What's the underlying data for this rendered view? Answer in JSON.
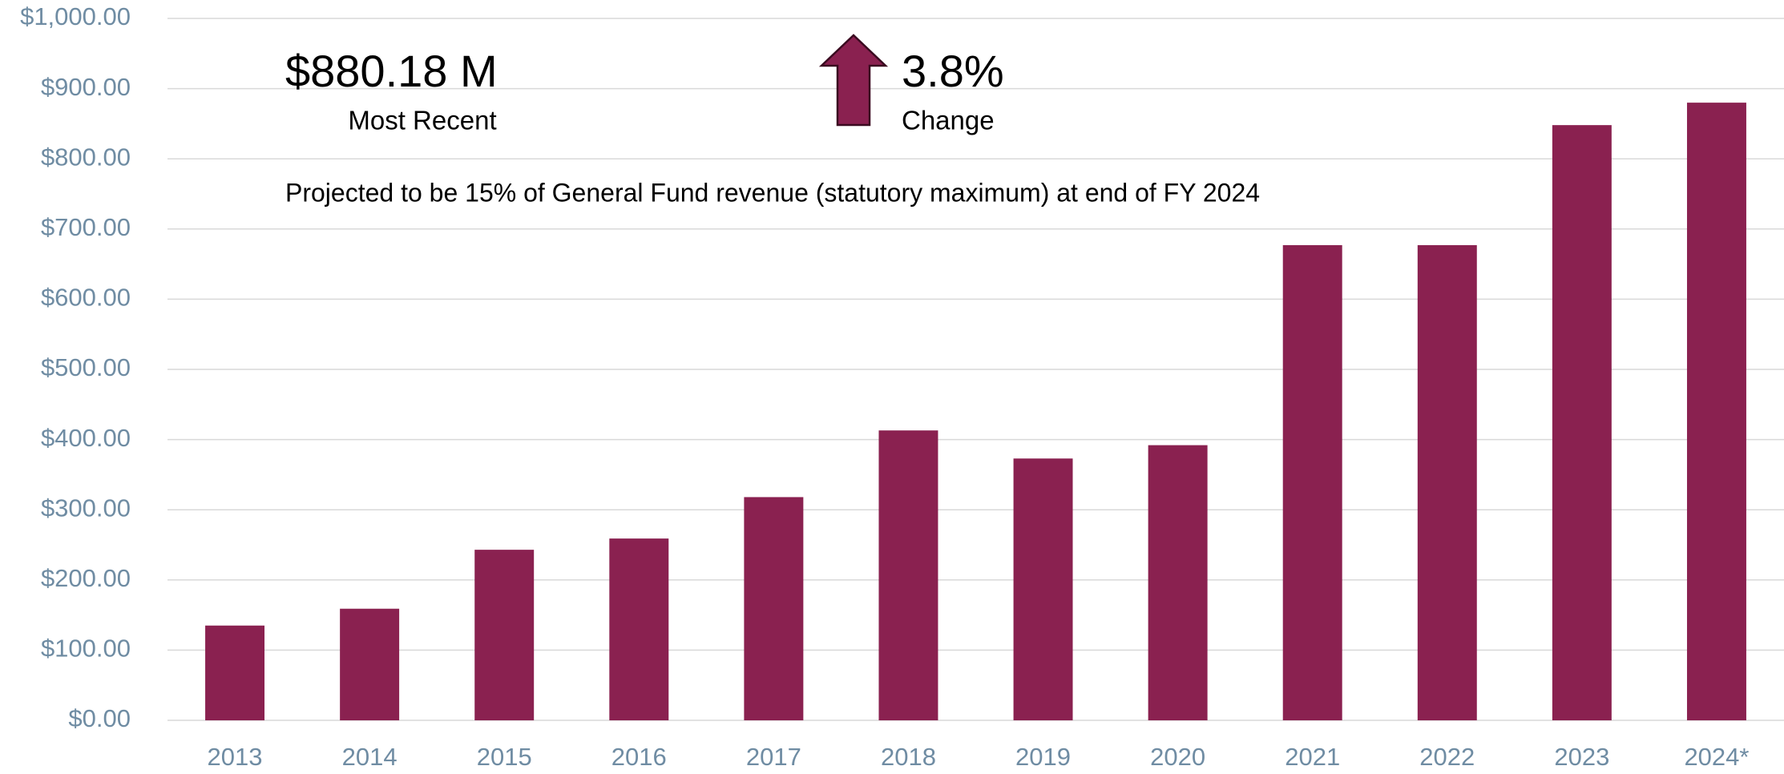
{
  "chart_data": {
    "type": "bar",
    "categories": [
      "2013",
      "2014",
      "2015",
      "2016",
      "2017",
      "2018",
      "2019",
      "2020",
      "2021",
      "2022",
      "2023",
      "2024*"
    ],
    "values": [
      135,
      159,
      243,
      259,
      318,
      413,
      373,
      392,
      677,
      677,
      848,
      880
    ],
    "color": "#8a2150",
    "ylim": [
      0,
      1000
    ],
    "yticks": [
      {
        "value": 0,
        "label": "$0.00"
      },
      {
        "value": 100,
        "label": "$100.00"
      },
      {
        "value": 200,
        "label": "$200.00"
      },
      {
        "value": 300,
        "label": "$300.00"
      },
      {
        "value": 400,
        "label": "$400.00"
      },
      {
        "value": 500,
        "label": "$500.00"
      },
      {
        "value": 600,
        "label": "$600.00"
      },
      {
        "value": 700,
        "label": "$700.00"
      },
      {
        "value": 800,
        "label": "$800.00"
      },
      {
        "value": 900,
        "label": "$900.00"
      },
      {
        "value": 1000,
        "label": "$1,000.00"
      }
    ],
    "grid": true,
    "annotations": {
      "headline": "$880.18 M",
      "headline_caption": "Most Recent",
      "change": "3.8%",
      "change_caption": "Change",
      "note": "Projected to be 15% of General Fund revenue (statutory maximum) at end of FY 2024"
    }
  }
}
